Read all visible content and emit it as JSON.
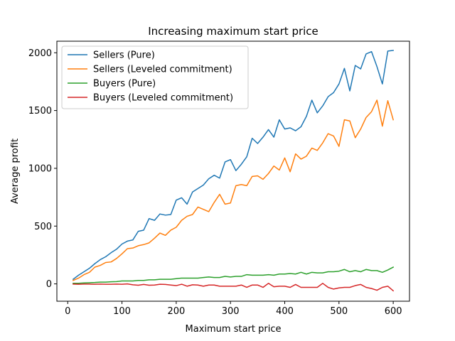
{
  "chart_data": {
    "type": "line",
    "title": "Increasing maximum start price",
    "xlabel": "Maximum start price",
    "ylabel": "Average profit",
    "xlim": [
      -20,
      630
    ],
    "ylim": [
      -150,
      2100
    ],
    "xticks": [
      0,
      100,
      200,
      300,
      400,
      500,
      600
    ],
    "yticks": [
      0,
      500,
      1000,
      1500,
      2000
    ],
    "grid": false,
    "legend_position": "top-left",
    "x": [
      10,
      20,
      30,
      40,
      50,
      60,
      70,
      80,
      90,
      100,
      110,
      120,
      130,
      140,
      150,
      160,
      170,
      180,
      190,
      200,
      210,
      220,
      230,
      240,
      250,
      260,
      270,
      280,
      290,
      300,
      310,
      320,
      330,
      340,
      350,
      360,
      370,
      380,
      390,
      400,
      410,
      420,
      430,
      440,
      450,
      460,
      470,
      480,
      490,
      500,
      510,
      520,
      530,
      540,
      550,
      560,
      570,
      580,
      590,
      600
    ],
    "series": [
      {
        "name": "Sellers (Pure)",
        "color": "#1f77b4",
        "values": [
          40,
          75,
          105,
          135,
          175,
          210,
          235,
          270,
          300,
          345,
          370,
          380,
          455,
          465,
          565,
          550,
          605,
          595,
          600,
          725,
          745,
          690,
          795,
          825,
          855,
          910,
          940,
          915,
          1055,
          1075,
          980,
          1035,
          1100,
          1260,
          1215,
          1270,
          1335,
          1270,
          1420,
          1340,
          1350,
          1325,
          1360,
          1450,
          1590,
          1480,
          1540,
          1620,
          1655,
          1730,
          1865,
          1670,
          1890,
          1860,
          1990,
          2010,
          1880,
          1730,
          2015,
          2020
        ]
      },
      {
        "name": "Sellers (Leveled commitment)",
        "color": "#ff7f0e",
        "values": [
          30,
          50,
          80,
          100,
          145,
          160,
          185,
          190,
          220,
          260,
          305,
          310,
          330,
          340,
          355,
          395,
          440,
          420,
          465,
          490,
          550,
          585,
          600,
          665,
          645,
          625,
          705,
          775,
          690,
          700,
          850,
          860,
          850,
          930,
          935,
          905,
          955,
          1020,
          985,
          1090,
          970,
          1125,
          1080,
          1105,
          1175,
          1155,
          1220,
          1300,
          1280,
          1190,
          1420,
          1410,
          1265,
          1340,
          1440,
          1490,
          1590,
          1365,
          1585,
          1420
        ]
      },
      {
        "name": "Buyers (Pure)",
        "color": "#2ca02c",
        "values": [
          5,
          5,
          8,
          10,
          12,
          15,
          15,
          18,
          20,
          25,
          25,
          25,
          30,
          30,
          35,
          35,
          40,
          40,
          40,
          45,
          50,
          50,
          50,
          50,
          55,
          60,
          55,
          55,
          65,
          60,
          65,
          65,
          80,
          75,
          75,
          75,
          80,
          75,
          85,
          85,
          90,
          85,
          100,
          85,
          100,
          95,
          95,
          105,
          105,
          110,
          125,
          105,
          115,
          105,
          125,
          115,
          115,
          100,
          120,
          145
        ]
      },
      {
        "name": "Buyers (Leveled commitment)",
        "color": "#d62728",
        "values": [
          -2,
          -3,
          -2,
          -2,
          -3,
          -2,
          -3,
          -3,
          -2,
          -3,
          0,
          -8,
          -12,
          -5,
          -12,
          -10,
          -3,
          -5,
          -10,
          -15,
          -3,
          -20,
          -8,
          -10,
          -20,
          -10,
          -10,
          -20,
          -20,
          -20,
          -20,
          -10,
          -30,
          -10,
          -10,
          -30,
          5,
          -25,
          -20,
          -20,
          -30,
          -5,
          -30,
          -30,
          -30,
          -30,
          5,
          -30,
          -45,
          -35,
          -30,
          -30,
          -15,
          -5,
          -30,
          -40,
          -55,
          -30,
          -20,
          -60
        ]
      }
    ]
  }
}
